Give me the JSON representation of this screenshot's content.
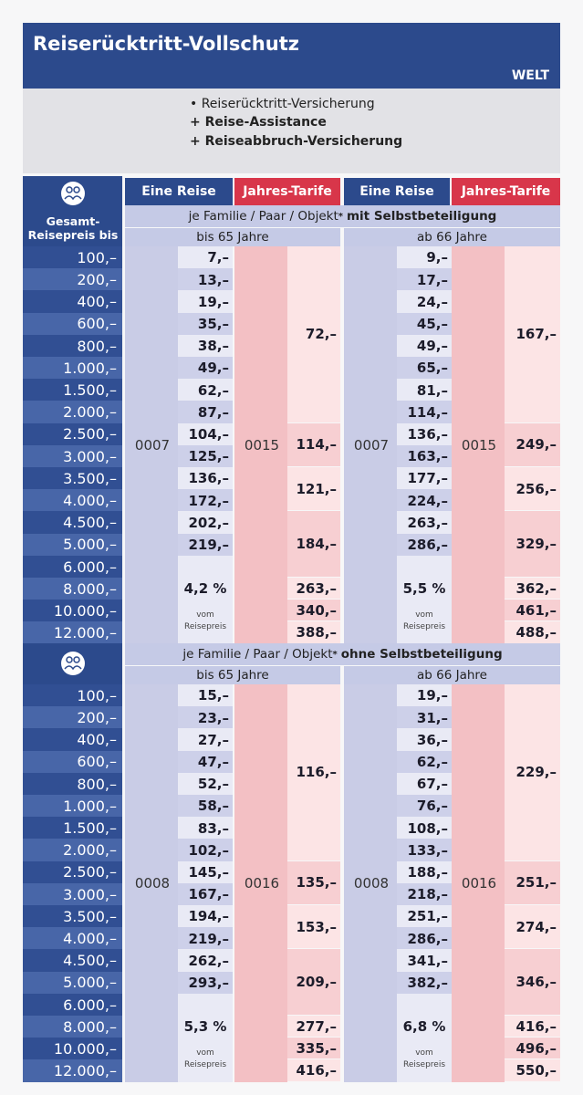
{
  "header": {
    "title": "Reiserücktritt-Vollschutz",
    "region": "WELT"
  },
  "features": [
    "• Reiserücktritt-Versicherung",
    "+ Reise-Assistance",
    "+ Reiseabbruch-Versicherung"
  ],
  "table": {
    "price_label": "Gesamt-Reisepreis bis",
    "columns": [
      "Eine Reise",
      "Jahres-Tarife",
      "Eine Reise",
      "Jahres-Tarife"
    ],
    "prices": [
      "100,–",
      "200,–",
      "400,–",
      "600,–",
      "800,–",
      "1.000,–",
      "1.500,–",
      "2.000,–",
      "2.500,–",
      "3.000,–",
      "3.500,–",
      "4.000,–",
      "4.500,–",
      "5.000,–",
      "6.000,–",
      "8.000,–",
      "10.000,–",
      "12.000,–"
    ],
    "sections": [
      {
        "scope": "je Familie / Paar / Objekt",
        "asterisk": "*",
        "deductible": "mit Selbstbeteiligung",
        "groups": [
          {
            "age": "bis 65 Jahre",
            "single": {
              "code": "0007",
              "prices": [
                "7,–",
                "13,–",
                "19,–",
                "35,–",
                "38,–",
                "49,–",
                "62,–",
                "87,–",
                "104,–",
                "125,–",
                "136,–",
                "172,–",
                "202,–",
                "219,–"
              ],
              "percent": "4,2 %",
              "percent_note": "vom Reisepreis"
            },
            "annual": {
              "code": "0015",
              "prices": [
                "72,–",
                "114,–",
                "121,–",
                "184,–",
                "263,–",
                "340,–",
                "388,–"
              ]
            }
          },
          {
            "age": "ab 66 Jahre",
            "single": {
              "code": "0007",
              "prices": [
                "9,–",
                "17,–",
                "24,–",
                "45,–",
                "49,–",
                "65,–",
                "81,–",
                "114,–",
                "136,–",
                "163,–",
                "177,–",
                "224,–",
                "263,–",
                "286,–"
              ],
              "percent": "5,5 %",
              "percent_note": "vom Reisepreis"
            },
            "annual": {
              "code": "0015",
              "prices": [
                "167,–",
                "249,–",
                "256,–",
                "329,–",
                "362,–",
                "461,–",
                "488,–"
              ]
            }
          }
        ]
      },
      {
        "scope": "je Familie / Paar / Objekt",
        "asterisk": "*",
        "deductible": "ohne Selbstbeteiligung",
        "groups": [
          {
            "age": "bis 65 Jahre",
            "single": {
              "code": "0008",
              "prices": [
                "15,–",
                "23,–",
                "27,–",
                "47,–",
                "52,–",
                "58,–",
                "83,–",
                "102,–",
                "145,–",
                "167,–",
                "194,–",
                "219,–",
                "262,–",
                "293,–"
              ],
              "percent": "5,3 %",
              "percent_note": "vom Reisepreis"
            },
            "annual": {
              "code": "0016",
              "prices": [
                "116,–",
                "135,–",
                "153,–",
                "209,–",
                "277,–",
                "335,–",
                "416,–"
              ]
            }
          },
          {
            "age": "ab 66 Jahre",
            "single": {
              "code": "0008",
              "prices": [
                "19,–",
                "31,–",
                "36,–",
                "62,–",
                "67,–",
                "76,–",
                "108,–",
                "133,–",
                "188,–",
                "218,–",
                "251,–",
                "286,–",
                "341,–",
                "382,–"
              ],
              "percent": "6,8 %",
              "percent_note": "vom Reisepreis"
            },
            "annual": {
              "code": "0016",
              "prices": [
                "229,–",
                "251,–",
                "274,–",
                "346,–",
                "416,–",
                "496,–",
                "550,–"
              ]
            }
          }
        ]
      }
    ]
  }
}
